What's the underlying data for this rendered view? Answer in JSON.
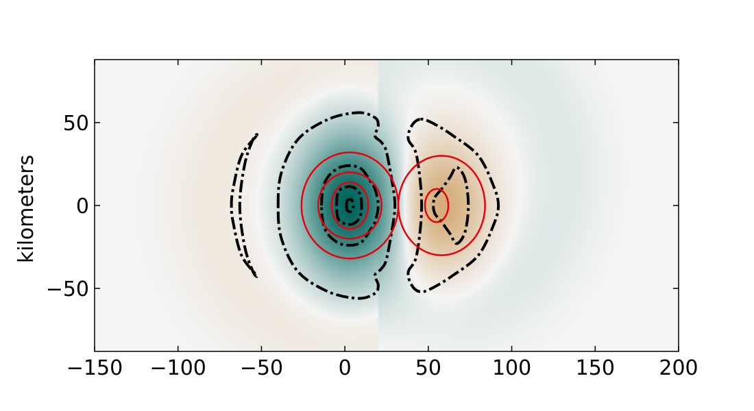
{
  "chart_data": {
    "type": "heatmap",
    "title": "",
    "xlabel": "",
    "ylabel": "kilometers",
    "xlim": [
      -150,
      200
    ],
    "ylim": [
      -88,
      88
    ],
    "x_ticks": [
      -150,
      -100,
      -50,
      0,
      50,
      100,
      150,
      200
    ],
    "y_ticks": [
      -50,
      0,
      50
    ],
    "x_tick_labels": [
      "−150",
      "−100",
      "−50",
      "0",
      "50",
      "100",
      "150",
      "200"
    ],
    "y_tick_labels": [
      "−50",
      "0",
      "50"
    ],
    "grid": false,
    "colormap": {
      "negative": "#01665e",
      "mid": "#f5f5f5",
      "positive": "#bf812d"
    },
    "field_features": [
      {
        "name": "trough",
        "center": [
          3,
          0
        ],
        "radius": [
          28,
          40
        ],
        "amplitude": -1.0
      },
      {
        "name": "ridge",
        "center": [
          58,
          0
        ],
        "radius": [
          25,
          35
        ],
        "amplitude": 0.55
      },
      {
        "name": "outer-ring-positive",
        "center": [
          0,
          0
        ],
        "radius": [
          80,
          80
        ],
        "amplitude": 0.06
      },
      {
        "name": "outer-ring-negative",
        "center": [
          60,
          20
        ],
        "radius": [
          70,
          80
        ],
        "amplitude": -0.05
      }
    ],
    "red_contours": [
      {
        "center": [
          3,
          0
        ],
        "rx": 29,
        "ry": 32
      },
      {
        "center": [
          3,
          0
        ],
        "rx": 19,
        "ry": 20
      },
      {
        "center": [
          3,
          0
        ],
        "rx": 11,
        "ry": 14
      },
      {
        "center": [
          58,
          0
        ],
        "rx": 26,
        "ry": 30
      },
      {
        "center": [
          55,
          0
        ],
        "rx": 7,
        "ry": 10
      }
    ],
    "black_contours": [
      {
        "name": "outer-west-arc",
        "points": [
          [
            -53,
            42
          ],
          [
            -62,
            30
          ],
          [
            -67,
            10
          ],
          [
            -68,
            0
          ],
          [
            -67,
            -10
          ],
          [
            -62,
            -30
          ],
          [
            -53,
            -42
          ],
          [
            -55,
            -40
          ],
          [
            -60,
            -25
          ],
          [
            -63,
            0
          ],
          [
            -60,
            25
          ],
          [
            -55,
            40
          ]
        ]
      },
      {
        "name": "large-trough-contour",
        "points": [
          [
            -40,
            0
          ],
          [
            -38,
            20
          ],
          [
            -28,
            40
          ],
          [
            -10,
            52
          ],
          [
            8,
            56
          ],
          [
            18,
            53
          ],
          [
            20,
            48
          ],
          [
            18,
            42
          ],
          [
            22,
            38
          ],
          [
            25,
            32
          ],
          [
            29,
            10
          ],
          [
            30,
            0
          ],
          [
            29,
            -10
          ],
          [
            25,
            -32
          ],
          [
            22,
            -38
          ],
          [
            18,
            -42
          ],
          [
            20,
            -48
          ],
          [
            18,
            -53
          ],
          [
            8,
            -56
          ],
          [
            -10,
            -52
          ],
          [
            -28,
            -40
          ],
          [
            -38,
            -20
          ]
        ]
      },
      {
        "name": "mid-trough-contour",
        "points": [
          [
            -14,
            0
          ],
          [
            -12,
            14
          ],
          [
            -5,
            22
          ],
          [
            3,
            24
          ],
          [
            10,
            22
          ],
          [
            15,
            15
          ],
          [
            18,
            10
          ],
          [
            20,
            0
          ],
          [
            18,
            -10
          ],
          [
            15,
            -15
          ],
          [
            10,
            -22
          ],
          [
            3,
            -24
          ],
          [
            -5,
            -22
          ],
          [
            -12,
            -14
          ]
        ]
      },
      {
        "name": "inner-trough-contour",
        "points": [
          [
            -5,
            0
          ],
          [
            -4,
            8
          ],
          [
            0,
            11
          ],
          [
            5,
            11
          ],
          [
            9,
            7
          ],
          [
            10,
            0
          ],
          [
            9,
            -7
          ],
          [
            5,
            -11
          ],
          [
            0,
            -11
          ],
          [
            -4,
            -8
          ]
        ]
      },
      {
        "name": "core-trough-contour",
        "points": [
          [
            1,
            0
          ],
          [
            1.5,
            3
          ],
          [
            4,
            3.5
          ],
          [
            5,
            0
          ],
          [
            4,
            -3.5
          ],
          [
            1.5,
            -3
          ]
        ]
      },
      {
        "name": "large-ridge-contour",
        "points": [
          [
            45,
            52
          ],
          [
            40,
            48
          ],
          [
            38,
            40
          ],
          [
            43,
            30
          ],
          [
            46,
            0
          ],
          [
            43,
            -30
          ],
          [
            38,
            -40
          ],
          [
            40,
            -48
          ],
          [
            45,
            -52
          ],
          [
            52,
            -50
          ],
          [
            65,
            -42
          ],
          [
            80,
            -30
          ],
          [
            89,
            -12
          ],
          [
            92,
            0
          ],
          [
            89,
            12
          ],
          [
            80,
            30
          ],
          [
            65,
            42
          ],
          [
            52,
            50
          ]
        ]
      },
      {
        "name": "inner-ridge-contour",
        "points": [
          [
            54,
            5
          ],
          [
            58,
            10
          ],
          [
            63,
            17
          ],
          [
            67,
            23
          ],
          [
            72,
            16
          ],
          [
            74,
            0
          ],
          [
            72,
            -16
          ],
          [
            67,
            -23
          ],
          [
            63,
            -17
          ],
          [
            58,
            -10
          ],
          [
            54,
            -5
          ],
          [
            53,
            0
          ]
        ]
      }
    ]
  }
}
